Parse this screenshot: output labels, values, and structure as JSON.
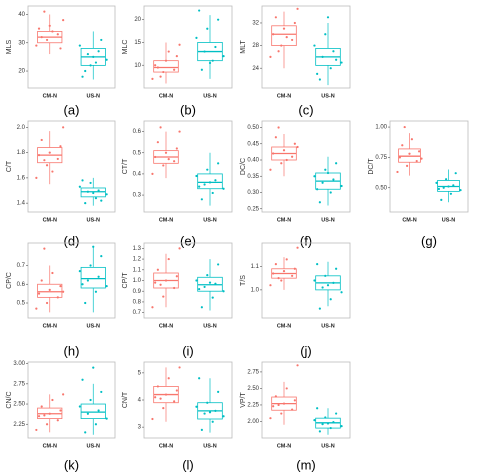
{
  "chart_data": [
    {
      "type": "box",
      "label": "(a)",
      "ylabel": "MLS",
      "categories": [
        "CM-N",
        "US-N"
      ],
      "ylim": [
        14,
        43
      ],
      "yticks": [
        20,
        30,
        40
      ],
      "boxes": [
        {
          "color": "#f8766d",
          "whislo": 26,
          "q1": 30,
          "median": 32,
          "q3": 34,
          "whishi": 40,
          "points": [
            29,
            31,
            33,
            35,
            36,
            28,
            32,
            34,
            38,
            41
          ]
        },
        {
          "color": "#00bfc4",
          "whislo": 17,
          "q1": 22,
          "median": 25,
          "q3": 28,
          "whishi": 34,
          "points": [
            20,
            23,
            24,
            26,
            27,
            29,
            22,
            31,
            18,
            25
          ]
        }
      ]
    },
    {
      "type": "box",
      "label": "(b)",
      "ylabel": "MLC",
      "categories": [
        "CM-N",
        "US-N"
      ],
      "ylim": [
        5,
        23
      ],
      "yticks": [
        10,
        15,
        20
      ],
      "boxes": [
        {
          "color": "#f8766d",
          "whislo": 6,
          "q1": 8.5,
          "median": 9.5,
          "q3": 11,
          "whishi": 15,
          "points": [
            7,
            8.5,
            9,
            10,
            11,
            12,
            9.5,
            13,
            14.5,
            7.5
          ]
        },
        {
          "color": "#00bfc4",
          "whislo": 7,
          "q1": 11,
          "median": 13,
          "q3": 15,
          "whishi": 21,
          "points": [
            9,
            11,
            12,
            13,
            14,
            16,
            18,
            20,
            22,
            10.5
          ]
        }
      ]
    },
    {
      "type": "box",
      "label": "(c)",
      "ylabel": "MLT",
      "categories": [
        "CM-N",
        "US-N"
      ],
      "ylim": [
        20.5,
        35
      ],
      "yticks": [
        24,
        28,
        32
      ],
      "boxes": [
        {
          "color": "#f8766d",
          "whislo": 24,
          "q1": 28,
          "median": 30,
          "q3": 31.5,
          "whishi": 34,
          "points": [
            26,
            28,
            29,
            30,
            31,
            32,
            33,
            29.5,
            34.5,
            27
          ]
        },
        {
          "color": "#00bfc4",
          "whislo": 21,
          "q1": 24.5,
          "median": 26,
          "q3": 27.5,
          "whishi": 32,
          "points": [
            22,
            24,
            25,
            26,
            27,
            28,
            30,
            25.5,
            23,
            33
          ]
        }
      ]
    },
    {
      "type": "box",
      "label": "(d)",
      "ylabel": "C/T",
      "categories": [
        "CM-N",
        "US-N"
      ],
      "ylim": [
        1.33,
        2.05
      ],
      "yticks": [
        1.4,
        1.6,
        1.8,
        {
          "value": 2,
          "label": "2.0"
        }
      ],
      "boxes": [
        {
          "color": "#f8766d",
          "whislo": 1.55,
          "q1": 1.72,
          "median": 1.78,
          "q3": 1.84,
          "whishi": 1.97,
          "points": [
            1.6,
            1.7,
            1.75,
            1.78,
            1.8,
            1.85,
            1.9,
            1.65,
            2.0,
            1.74
          ]
        },
        {
          "color": "#00bfc4",
          "whislo": 1.38,
          "q1": 1.45,
          "median": 1.49,
          "q3": 1.52,
          "whishi": 1.6,
          "points": [
            1.4,
            1.44,
            1.47,
            1.49,
            1.5,
            1.53,
            1.56,
            1.42,
            1.58,
            1.48
          ]
        }
      ]
    },
    {
      "type": "box",
      "label": "(e)",
      "ylabel": "CT/T",
      "categories": [
        "CM-N",
        "US-N"
      ],
      "ylim": [
        0.22,
        0.65
      ],
      "yticks": [
        0.3,
        0.4,
        0.5,
        0.6
      ],
      "boxes": [
        {
          "color": "#f8766d",
          "whislo": 0.38,
          "q1": 0.45,
          "median": 0.48,
          "q3": 0.51,
          "whishi": 0.6,
          "points": [
            0.4,
            0.44,
            0.46,
            0.48,
            0.5,
            0.52,
            0.55,
            0.47,
            0.6,
            0.62
          ]
        },
        {
          "color": "#00bfc4",
          "whislo": 0.25,
          "q1": 0.33,
          "median": 0.36,
          "q3": 0.4,
          "whishi": 0.5,
          "points": [
            0.28,
            0.31,
            0.33,
            0.35,
            0.37,
            0.39,
            0.42,
            0.45,
            0.34,
            0.36
          ]
        }
      ]
    },
    {
      "type": "box",
      "label": "(f)",
      "ylabel": "DC/C",
      "categories": [
        "CM-N",
        "US-N"
      ],
      "ylim": [
        0.24,
        0.52
      ],
      "yticks": [
        0.25,
        {
          "value": 0.3,
          "label": "0.30"
        },
        0.35,
        {
          "value": 0.4,
          "label": "0.40"
        },
        0.45,
        {
          "value": 0.5,
          "label": "0.50"
        }
      ],
      "boxes": [
        {
          "color": "#f8766d",
          "whislo": 0.35,
          "q1": 0.4,
          "median": 0.42,
          "q3": 0.44,
          "whishi": 0.48,
          "points": [
            0.37,
            0.39,
            0.41,
            0.42,
            0.43,
            0.45,
            0.47,
            0.4,
            0.44,
            0.5
          ]
        },
        {
          "color": "#00bfc4",
          "whislo": 0.26,
          "q1": 0.31,
          "median": 0.335,
          "q3": 0.36,
          "whishi": 0.41,
          "points": [
            0.27,
            0.3,
            0.32,
            0.33,
            0.34,
            0.35,
            0.37,
            0.39,
            0.31,
            0.36
          ]
        }
      ]
    },
    {
      "type": "box",
      "label": "(g)",
      "ylabel": "DC/T",
      "categories": [
        "CM-N",
        "US-N"
      ],
      "ylim": [
        0.3,
        1.05
      ],
      "yticks": [
        {
          "value": 0.5,
          "label": "0.50"
        },
        0.75,
        {
          "value": 1,
          "label": "1.00"
        }
      ],
      "boxes": [
        {
          "color": "#f8766d",
          "whislo": 0.6,
          "q1": 0.71,
          "median": 0.76,
          "q3": 0.82,
          "whishi": 0.95,
          "points": [
            0.63,
            0.68,
            0.72,
            0.75,
            0.78,
            0.8,
            0.85,
            0.9,
            0.74,
            1.0
          ]
        },
        {
          "color": "#00bfc4",
          "whislo": 0.38,
          "q1": 0.47,
          "median": 0.51,
          "q3": 0.56,
          "whishi": 0.65,
          "points": [
            0.4,
            0.45,
            0.48,
            0.5,
            0.52,
            0.54,
            0.57,
            0.62,
            0.49,
            0.51
          ]
        }
      ]
    },
    {
      "type": "box",
      "label": "(h)",
      "ylabel": "CP/C",
      "categories": [
        "CM-N",
        "US-N"
      ],
      "ylim": [
        0.42,
        0.82
      ],
      "yticks": [
        0.5,
        0.6,
        0.7
      ],
      "boxes": [
        {
          "color": "#f8766d",
          "whislo": 0.45,
          "q1": 0.53,
          "median": 0.56,
          "q3": 0.6,
          "whishi": 0.7,
          "points": [
            0.47,
            0.5,
            0.53,
            0.55,
            0.57,
            0.59,
            0.62,
            0.66,
            0.56,
            0.79
          ]
        },
        {
          "color": "#00bfc4",
          "whislo": 0.45,
          "q1": 0.58,
          "median": 0.63,
          "q3": 0.69,
          "whishi": 0.8,
          "points": [
            0.5,
            0.56,
            0.59,
            0.62,
            0.64,
            0.67,
            0.7,
            0.75,
            0.6,
            0.8
          ]
        }
      ]
    },
    {
      "type": "box",
      "label": "(i)",
      "ylabel": "CP/T",
      "categories": [
        "CM-N",
        "US-N"
      ],
      "ylim": [
        0.65,
        1.35
      ],
      "yticks": [
        0.7,
        0.8,
        0.9,
        {
          "value": 1,
          "label": "1.0"
        },
        1.1,
        1.2,
        1.3
      ],
      "boxes": [
        {
          "color": "#f8766d",
          "whislo": 0.75,
          "q1": 0.93,
          "median": 1,
          "q3": 1.07,
          "whishi": 1.25,
          "points": [
            0.75,
            0.85,
            0.93,
            0.98,
            1,
            1.04,
            1.1,
            1.2,
            1.3,
            0.96
          ]
        },
        {
          "color": "#00bfc4",
          "whislo": 0.72,
          "q1": 0.9,
          "median": 0.96,
          "q3": 1.03,
          "whishi": 1.2,
          "points": [
            0.75,
            0.84,
            0.9,
            0.94,
            0.97,
            1,
            1.05,
            1.15,
            0.92,
            0.98
          ]
        }
      ]
    },
    {
      "type": "box",
      "label": "(j)",
      "ylabel": "T/S",
      "categories": [
        "CM-N",
        "US-N"
      ],
      "ylim": [
        0.88,
        1.2
      ],
      "yticks": [
        {
          "value": 1,
          "label": "1.0"
        },
        1.1
      ],
      "boxes": [
        {
          "color": "#f8766d",
          "whislo": 1,
          "q1": 1.05,
          "median": 1.07,
          "q3": 1.09,
          "whishi": 1.14,
          "points": [
            1.02,
            1.04,
            1.06,
            1.07,
            1.08,
            1.09,
            1.11,
            1.13,
            1.18,
            1.05
          ]
        },
        {
          "color": "#00bfc4",
          "whislo": 0.93,
          "q1": 1,
          "median": 1.03,
          "q3": 1.06,
          "whishi": 1.12,
          "points": [
            0.92,
            0.96,
            0.99,
            1.01,
            1.03,
            1.04,
            1.06,
            1.09,
            1.11,
            1.02
          ]
        }
      ]
    },
    {
      "type": "box",
      "label": "(k)",
      "ylabel": "CN/C",
      "categories": [
        "CM-N",
        "US-N"
      ],
      "ylim": [
        2.08,
        3.02
      ],
      "yticks": [
        2.25,
        {
          "value": 2.5,
          "label": "2.50"
        },
        2.75,
        {
          "value": 3,
          "label": "3.00"
        }
      ],
      "boxes": [
        {
          "color": "#f8766d",
          "whislo": 2.15,
          "q1": 2.32,
          "median": 2.38,
          "q3": 2.45,
          "whishi": 2.62,
          "points": [
            2.18,
            2.25,
            2.3,
            2.35,
            2.38,
            2.42,
            2.47,
            2.55,
            2.62,
            2.36
          ]
        },
        {
          "color": "#00bfc4",
          "whislo": 2.12,
          "q1": 2.32,
          "median": 2.4,
          "q3": 2.5,
          "whishi": 2.75,
          "points": [
            2.15,
            2.25,
            2.32,
            2.38,
            2.42,
            2.47,
            2.55,
            2.65,
            2.8,
            2.95
          ]
        }
      ]
    },
    {
      "type": "box",
      "label": "(l)",
      "ylabel": "CN/T",
      "categories": [
        "CM-N",
        "US-N"
      ],
      "ylim": [
        2.6,
        5.4
      ],
      "yticks": [
        3,
        4,
        5
      ],
      "boxes": [
        {
          "color": "#f8766d",
          "whislo": 3.2,
          "q1": 3.9,
          "median": 4.2,
          "q3": 4.5,
          "whishi": 5.2,
          "points": [
            3.3,
            3.7,
            3.95,
            4.1,
            4.2,
            4.35,
            4.5,
            4.8,
            5.2,
            4.05
          ]
        },
        {
          "color": "#00bfc4",
          "whislo": 2.8,
          "q1": 3.3,
          "median": 3.6,
          "q3": 3.9,
          "whishi": 4.8,
          "points": [
            2.9,
            3.2,
            3.4,
            3.5,
            3.6,
            3.75,
            3.9,
            4.3,
            4.8,
            3.55
          ]
        }
      ]
    },
    {
      "type": "box",
      "label": "(m)",
      "ylabel": "VP/T",
      "categories": [
        "CM-N",
        "US-N"
      ],
      "ylim": [
        1.75,
        2.9
      ],
      "yticks": [
        {
          "value": 2,
          "label": "2.00"
        },
        2.25,
        {
          "value": 2.5,
          "label": "2.50"
        },
        2.75
      ],
      "boxes": [
        {
          "color": "#f8766d",
          "whislo": 1.95,
          "q1": 2.17,
          "median": 2.27,
          "q3": 2.37,
          "whishi": 2.6,
          "points": [
            2.05,
            2.12,
            2.18,
            2.23,
            2.27,
            2.32,
            2.38,
            2.5,
            2.85,
            2.25
          ]
        },
        {
          "color": "#00bfc4",
          "whislo": 1.8,
          "q1": 1.9,
          "median": 1.98,
          "q3": 2.05,
          "whishi": 2.2,
          "points": [
            1.85,
            1.9,
            1.93,
            1.96,
            1.99,
            2.02,
            2.06,
            2.12,
            2.2,
            1.97
          ]
        }
      ]
    }
  ]
}
